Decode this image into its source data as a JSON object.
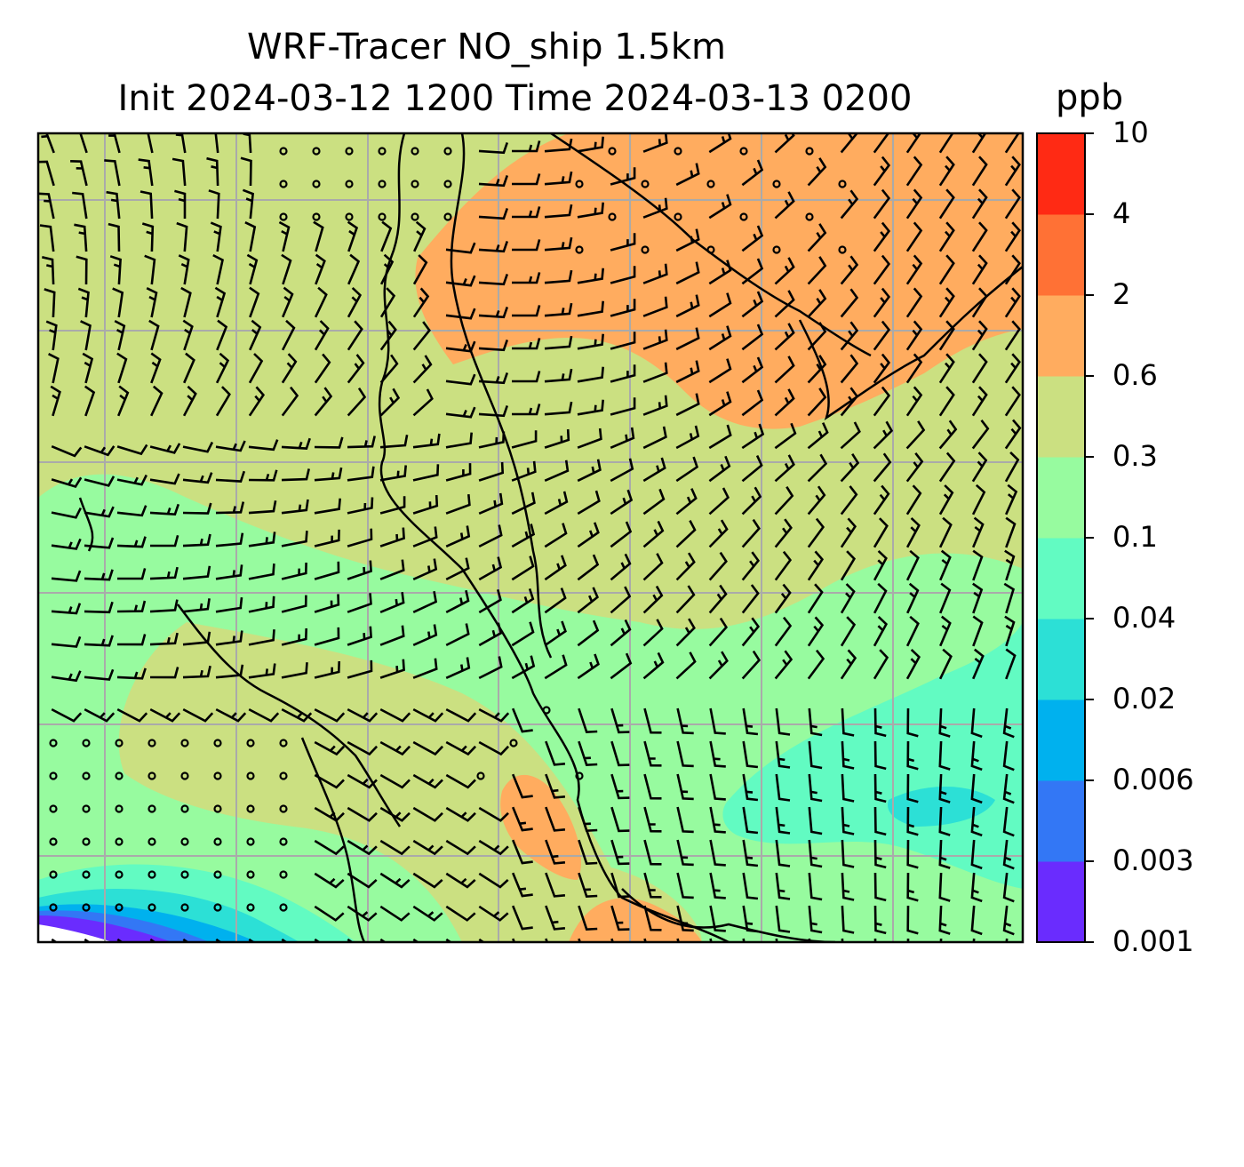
{
  "title": {
    "line1": "WRF-Tracer NO_ship 1.5km",
    "line2": "Init 2024-03-12 1200 Time 2024-03-13 0200",
    "units": "ppb"
  },
  "colorbar": {
    "levels": [
      {
        "label": "0.001",
        "color": "#6a2cfe"
      },
      {
        "label": "0.003",
        "color": "#3377f5"
      },
      {
        "label": "0.006",
        "color": "#00b1ee"
      },
      {
        "label": "0.02",
        "color": "#2ce0d6"
      },
      {
        "label": "0.04",
        "color": "#62fbc2"
      },
      {
        "label": "0.1",
        "color": "#97fb9f"
      },
      {
        "label": "0.3",
        "color": "#cbe081"
      },
      {
        "label": "0.6",
        "color": "#ffac5f"
      },
      {
        "label": "2",
        "color": "#ff7135"
      },
      {
        "label": "4",
        "color": "#ff2a14"
      },
      {
        "label": "10",
        "color": ""
      }
    ]
  },
  "map": {
    "background": "#97fb9f",
    "gridline_color": "#aaaaaa",
    "coastline_color": "#000000",
    "barb_color": "#000000"
  }
}
